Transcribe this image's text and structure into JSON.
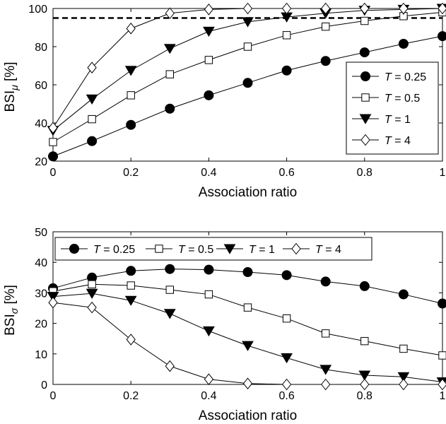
{
  "chart_data": [
    {
      "type": "line",
      "xlabel": "Association ratio",
      "ylabel_main": "BSI",
      "ylabel_sub": "μ",
      "ylabel_unit": " [%]",
      "xlim": [
        0,
        1
      ],
      "ylim": [
        20,
        100
      ],
      "xticks": [
        0,
        0.2,
        0.4,
        0.6,
        0.8,
        1
      ],
      "xtick_labels": [
        "0",
        "0.2",
        "0.4",
        "0.6",
        "0.8",
        "1"
      ],
      "yticks": [
        20,
        40,
        60,
        80,
        100
      ],
      "ytick_labels": [
        "20",
        "40",
        "60",
        "80",
        "100"
      ],
      "grid": false,
      "legend_position": "lower-right",
      "legend_layout": "vertical",
      "reference_line": {
        "y": 95,
        "style": "dashed"
      },
      "x": [
        0,
        0.1,
        0.2,
        0.3,
        0.4,
        0.5,
        0.6,
        0.7,
        0.8,
        0.9,
        1.0
      ],
      "series": [
        {
          "name": "0.25",
          "marker": "filled-circle",
          "values": [
            22.5,
            30.5,
            39,
            47.5,
            54.5,
            61,
            67.5,
            72.5,
            77,
            81.5,
            85.5
          ]
        },
        {
          "name": "0.5",
          "marker": "open-square",
          "values": [
            30,
            42,
            54.5,
            65.5,
            73,
            80,
            86,
            90.5,
            93.5,
            96,
            98
          ]
        },
        {
          "name": "1",
          "marker": "filled-down-triangle",
          "values": [
            36,
            52.5,
            67.5,
            79,
            88,
            93,
            95.5,
            97.5,
            99,
            99.5,
            100
          ]
        },
        {
          "name": "4",
          "marker": "open-diamond",
          "values": [
            37.5,
            69,
            89.5,
            97.5,
            99.5,
            100,
            100,
            100,
            100,
            100,
            100
          ]
        }
      ]
    },
    {
      "type": "line",
      "xlabel": "Association ratio",
      "ylabel_main": "BSI",
      "ylabel_sub": "σ",
      "ylabel_unit": " [%]",
      "xlim": [
        0,
        1
      ],
      "ylim": [
        0,
        50
      ],
      "xticks": [
        0,
        0.2,
        0.4,
        0.6,
        0.8,
        1
      ],
      "xtick_labels": [
        "0",
        "0.2",
        "0.4",
        "0.6",
        "0.8",
        "1"
      ],
      "yticks": [
        0,
        10,
        20,
        30,
        40,
        50
      ],
      "ytick_labels": [
        "0",
        "10",
        "20",
        "30",
        "40",
        "50"
      ],
      "grid": false,
      "legend_position": "top",
      "legend_layout": "horizontal",
      "x": [
        0,
        0.1,
        0.2,
        0.3,
        0.4,
        0.5,
        0.6,
        0.7,
        0.8,
        0.9,
        1.0
      ],
      "series": [
        {
          "name": "0.25",
          "marker": "filled-circle",
          "values": [
            31.5,
            35,
            37.2,
            37.8,
            37.6,
            36.8,
            35.8,
            33.7,
            32.2,
            29.5,
            26.5
          ]
        },
        {
          "name": "0.5",
          "marker": "open-square",
          "values": [
            30.5,
            32.8,
            32.4,
            31,
            29.5,
            25.2,
            21.6,
            16.7,
            14.2,
            11.7,
            9.5
          ]
        },
        {
          "name": "1",
          "marker": "filled-down-triangle",
          "values": [
            28.8,
            29.8,
            27.5,
            23.2,
            17.5,
            12.7,
            8.7,
            4.9,
            3,
            2.5,
            0.8
          ]
        },
        {
          "name": "4",
          "marker": "open-diamond",
          "values": [
            26.8,
            25.2,
            14.7,
            6,
            1.7,
            0.3,
            0,
            0,
            0,
            0,
            0
          ]
        }
      ]
    }
  ],
  "legend_prefix": "T",
  "legend_separator": " = "
}
